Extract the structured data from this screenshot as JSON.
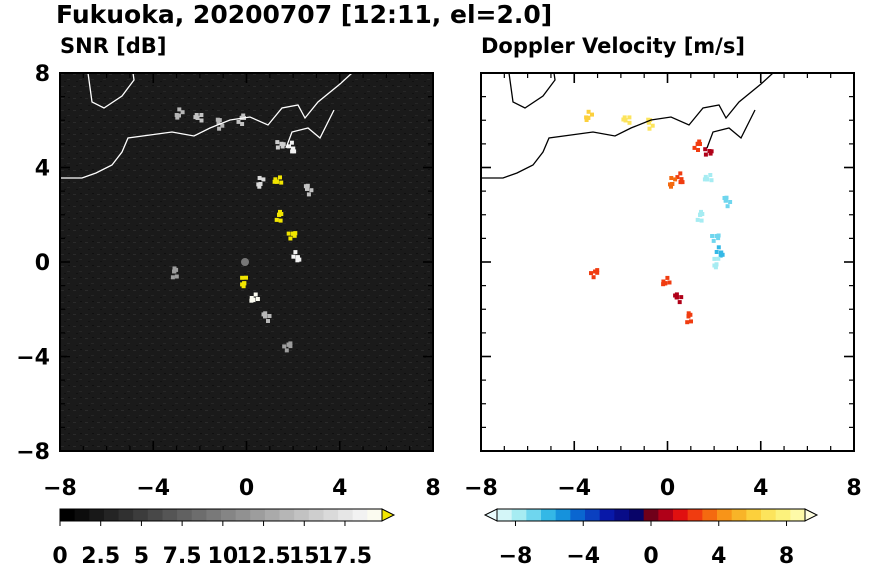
{
  "title": "Fukuoka, 20200707 [12:11, el=2.0]",
  "chart_data": [
    {
      "type": "heatmap",
      "title": "SNR [dB]",
      "xlim": [
        -8,
        8
      ],
      "ylim": [
        -8,
        8
      ],
      "xticks": [
        "−8",
        "−4",
        "0",
        "4",
        "8"
      ],
      "yticks": [
        "8",
        "4",
        "0",
        "−4",
        "−8"
      ],
      "background": "#1a1a1a",
      "colorbar": {
        "labels": [
          "0",
          "2.5",
          "5",
          "7.5",
          "10",
          "12.5",
          "15",
          "17.5"
        ],
        "levels": [
          0,
          2.5,
          5,
          7.5,
          10,
          12.5,
          15,
          17.5
        ],
        "colors": [
          "#000000",
          "#0c0c0c",
          "#181818",
          "#242424",
          "#303030",
          "#3c3c3c",
          "#484848",
          "#555555",
          "#616161",
          "#6d6d6d",
          "#797979",
          "#858585",
          "#919191",
          "#9d9d9d",
          "#aaaaaa",
          "#b6b6b6",
          "#c2c2c2",
          "#cecece",
          "#dadada",
          "#e6e6e6",
          "#f2f2f2",
          "#fbfbf0"
        ],
        "over_color": "#f2e600"
      },
      "echoes": [
        {
          "x": -2.9,
          "y": 6.2,
          "value": 12
        },
        {
          "x": -2.1,
          "y": 6.1,
          "value": 13
        },
        {
          "x": -1.2,
          "y": 5.9,
          "value": 12
        },
        {
          "x": -0.2,
          "y": 6.1,
          "value": 13
        },
        {
          "x": 1.5,
          "y": 5.0,
          "value": 14
        },
        {
          "x": 2.0,
          "y": 4.8,
          "value": 16
        },
        {
          "x": 0.6,
          "y": 3.3,
          "value": 15
        },
        {
          "x": 1.3,
          "y": 3.4,
          "value": 19
        },
        {
          "x": 2.6,
          "y": 3.1,
          "value": 13
        },
        {
          "x": 1.4,
          "y": 2.0,
          "value": 19
        },
        {
          "x": 2.0,
          "y": 1.2,
          "value": 19
        },
        {
          "x": 2.2,
          "y": 0.2,
          "value": 16
        },
        {
          "x": -0.1,
          "y": -0.9,
          "value": 19
        },
        {
          "x": 0.3,
          "y": -1.6,
          "value": 17
        },
        {
          "x": 0.8,
          "y": -2.3,
          "value": 12
        },
        {
          "x": -3.1,
          "y": -0.4,
          "value": 11
        },
        {
          "x": 1.8,
          "y": -3.5,
          "value": 11
        }
      ]
    },
    {
      "type": "heatmap",
      "title": "Doppler Velocity [m/s]",
      "xlim": [
        -8,
        8
      ],
      "ylim": [
        -8,
        8
      ],
      "xticks": [
        "−8",
        "−4",
        "0",
        "4",
        "8"
      ],
      "yticks": [],
      "background": "#ffffff",
      "colorbar": {
        "labels": [
          "−8",
          "−4",
          "0",
          "4",
          "8"
        ],
        "levels": [
          -8,
          -4,
          0,
          4,
          8
        ],
        "colors": [
          "#d4f6f8",
          "#a6ecf2",
          "#6fd6ee",
          "#34b8e6",
          "#1692dc",
          "#0a66d0",
          "#0a40c0",
          "#0818a8",
          "#080c88",
          "#080468",
          "#70001a",
          "#b00018",
          "#e01010",
          "#f03c10",
          "#f46a10",
          "#f89418",
          "#f8b428",
          "#fcd03c",
          "#fce45c",
          "#fcf27c",
          "#fefaa8"
        ],
        "under_color": "#eafcfe",
        "over_color": "#fefee0"
      },
      "echoes": [
        {
          "x": -3.4,
          "y": 6.1,
          "value": 5
        },
        {
          "x": -1.8,
          "y": 6.0,
          "value": 6
        },
        {
          "x": -0.8,
          "y": 5.9,
          "value": 6
        },
        {
          "x": 1.3,
          "y": 5.0,
          "value": 2
        },
        {
          "x": 1.8,
          "y": 4.7,
          "value": 1
        },
        {
          "x": 0.6,
          "y": 3.5,
          "value": 2
        },
        {
          "x": 0.2,
          "y": 3.3,
          "value": 3
        },
        {
          "x": 1.7,
          "y": 3.5,
          "value": -7
        },
        {
          "x": 2.5,
          "y": 2.6,
          "value": -6
        },
        {
          "x": 1.4,
          "y": 2.0,
          "value": -7
        },
        {
          "x": 2.1,
          "y": 1.1,
          "value": -6
        },
        {
          "x": 2.3,
          "y": 0.4,
          "value": -5
        },
        {
          "x": 2.1,
          "y": -0.1,
          "value": -7
        },
        {
          "x": -0.1,
          "y": -0.9,
          "value": 2
        },
        {
          "x": 0.4,
          "y": -1.5,
          "value": 1
        },
        {
          "x": 0.9,
          "y": -2.3,
          "value": 2
        },
        {
          "x": -3.1,
          "y": -0.4,
          "value": 2
        }
      ]
    }
  ]
}
